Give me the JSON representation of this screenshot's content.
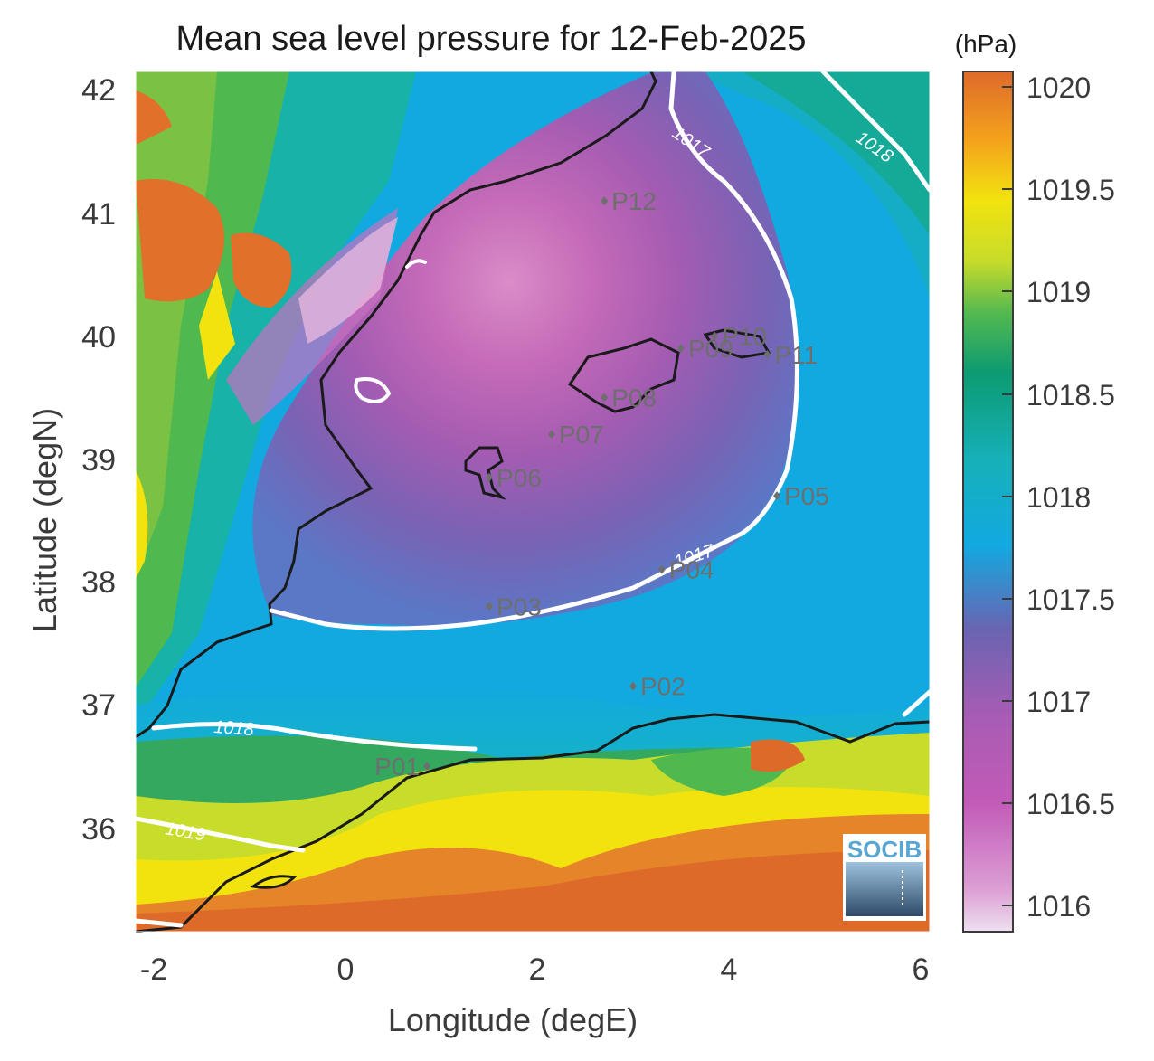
{
  "title": "Mean sea level pressure for 12-Feb-2025",
  "colorbar_unit": "(hPa)",
  "colorbar_ticks": [
    "1020",
    "1019.5",
    "1019",
    "1018.5",
    "1018",
    "1017.5",
    "1017",
    "1016.5",
    "1016"
  ],
  "colorbar_colors": [
    "#de6a2a",
    "#f4a21c",
    "#f2e30e",
    "#55b94f",
    "#0c9b96",
    "#12a9e0",
    "#6b64b2",
    "#c056b4",
    "#e6c9e2"
  ],
  "x_axis": {
    "label": "Longitude (degE)",
    "ticks": [
      "-2",
      "0",
      "2",
      "4",
      "6"
    ]
  },
  "y_axis": {
    "label": "Latitude (degN)",
    "ticks": [
      "42",
      "41",
      "40",
      "39",
      "38",
      "37",
      "36"
    ]
  },
  "contours": [
    {
      "label": "1017"
    },
    {
      "label": "1017"
    },
    {
      "label": "1018"
    },
    {
      "label": "1018"
    },
    {
      "label": "1019"
    }
  ],
  "stations": [
    {
      "id": "P01",
      "lon": 0.85,
      "lat": 36.5
    },
    {
      "id": "P02",
      "lon": 3.0,
      "lat": 37.15
    },
    {
      "id": "P03",
      "lon": 1.5,
      "lat": 37.8
    },
    {
      "id": "P04",
      "lon": 3.3,
      "lat": 38.1
    },
    {
      "id": "P05",
      "lon": 4.5,
      "lat": 38.7
    },
    {
      "id": "P06",
      "lon": 1.5,
      "lat": 38.85
    },
    {
      "id": "P07",
      "lon": 2.15,
      "lat": 39.2
    },
    {
      "id": "P08",
      "lon": 2.7,
      "lat": 39.5
    },
    {
      "id": "P09",
      "lon": 3.5,
      "lat": 39.9
    },
    {
      "id": "P10",
      "lon": 3.85,
      "lat": 40.0
    },
    {
      "id": "P11",
      "lon": 4.4,
      "lat": 39.85
    },
    {
      "id": "P12",
      "lon": 2.7,
      "lat": 41.1
    }
  ],
  "logo_text": "SOCIB"
}
